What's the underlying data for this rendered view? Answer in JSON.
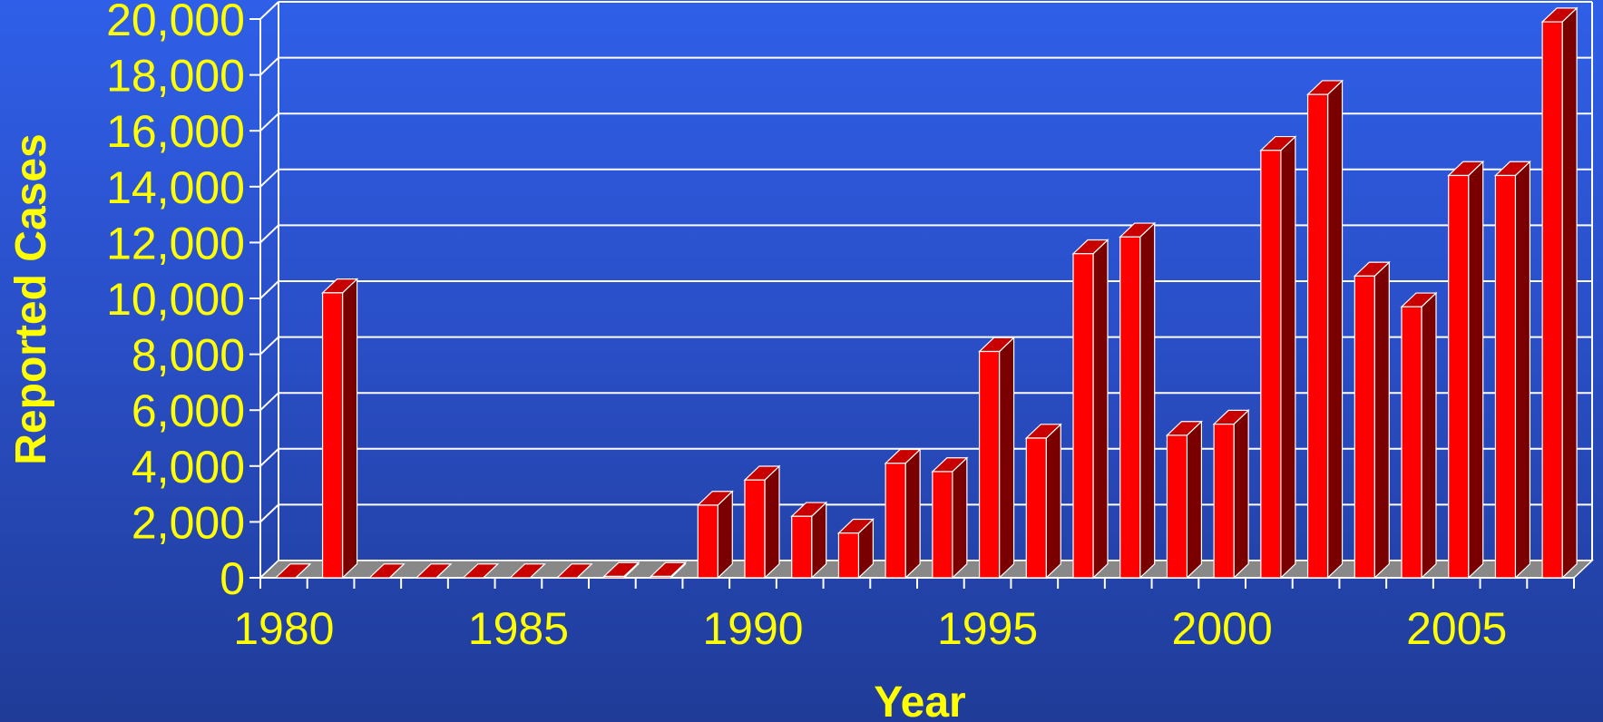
{
  "chart_data": {
    "type": "bar",
    "title": "",
    "xlabel": "Year",
    "ylabel": "Reported Cases",
    "ylim": [
      0,
      20000
    ],
    "yticks": [
      "0",
      "2,000",
      "4,000",
      "6,000",
      "8,000",
      "10,000",
      "12,000",
      "14,000",
      "16,000",
      "18,000",
      "20,000"
    ],
    "xtick_labels": [
      "1980",
      "1985",
      "1990",
      "1995",
      "2000",
      "2005"
    ],
    "categories": [
      1980,
      1981,
      1982,
      1983,
      1984,
      1985,
      1986,
      1987,
      1988,
      1989,
      1990,
      1991,
      1992,
      1993,
      1994,
      1995,
      1996,
      1997,
      1998,
      1999,
      2000,
      2001,
      2002,
      2003,
      2004,
      2005,
      2006,
      2007
    ],
    "values": [
      0,
      10200,
      0,
      0,
      0,
      0,
      0,
      50,
      50,
      2600,
      3500,
      2200,
      1600,
      4100,
      3800,
      8100,
      5000,
      11600,
      12200,
      5100,
      5500,
      15300,
      17300,
      10800,
      9700,
      14400,
      14400,
      19900
    ],
    "grid": true,
    "style": "3d-bar",
    "colors": {
      "bar_front": "#ff0000",
      "bar_side": "#7a0000",
      "bar_top": "#c80000",
      "text": "#ffff00",
      "grid": "#ffffff",
      "floor": "#888888"
    }
  }
}
